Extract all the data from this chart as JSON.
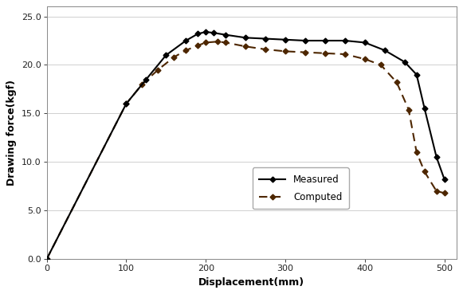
{
  "measured_x": [
    0,
    100,
    125,
    150,
    175,
    190,
    200,
    210,
    225,
    250,
    275,
    300,
    325,
    350,
    375,
    400,
    425,
    450,
    465,
    475,
    490,
    500
  ],
  "measured_y": [
    0.0,
    16.0,
    18.5,
    21.0,
    22.5,
    23.2,
    23.4,
    23.3,
    23.1,
    22.8,
    22.7,
    22.6,
    22.5,
    22.5,
    22.5,
    22.3,
    21.5,
    20.3,
    19.0,
    15.5,
    10.5,
    8.2
  ],
  "computed_x": [
    0,
    100,
    120,
    140,
    160,
    175,
    190,
    200,
    215,
    225,
    250,
    275,
    300,
    325,
    350,
    375,
    400,
    420,
    440,
    455,
    465,
    475,
    490,
    500
  ],
  "computed_y": [
    0.0,
    16.0,
    18.0,
    19.5,
    20.8,
    21.5,
    22.0,
    22.3,
    22.4,
    22.3,
    21.9,
    21.6,
    21.4,
    21.3,
    21.2,
    21.1,
    20.6,
    20.0,
    18.2,
    15.4,
    11.0,
    9.0,
    7.0,
    6.8
  ],
  "measured_label": "Measured",
  "computed_label": "Computed",
  "measured_color": "#000000",
  "computed_color": "#4d2600",
  "xlabel": "Displacement(mm)",
  "ylabel": "Drawing force(kgf)",
  "xlim": [
    0,
    515
  ],
  "ylim": [
    0.0,
    26.0
  ],
  "xticks": [
    0,
    100,
    200,
    300,
    400,
    500
  ],
  "yticks": [
    0.0,
    5.0,
    10.0,
    15.0,
    20.0,
    25.0
  ],
  "grid_color": "#d0d0d0",
  "bg_color": "#ffffff"
}
